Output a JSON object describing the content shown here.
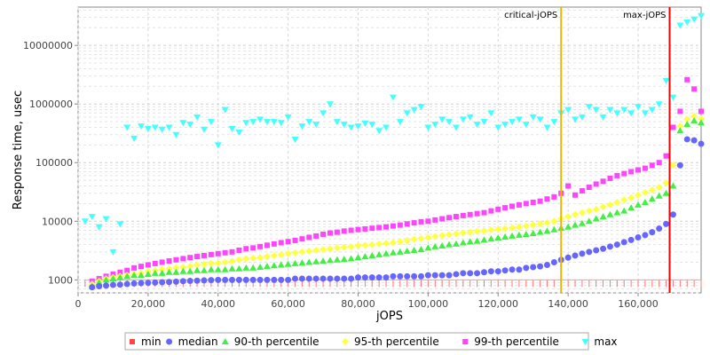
{
  "chart_data": {
    "type": "scatter",
    "title": "",
    "xlabel": "jOPS",
    "ylabel": "Response time, usec",
    "xlim": [
      0,
      178000
    ],
    "ylim": [
      600,
      45000000
    ],
    "yscale": "log",
    "x_ticks": [
      0,
      20000,
      40000,
      60000,
      80000,
      100000,
      120000,
      140000,
      160000
    ],
    "x_tick_labels": [
      "0",
      "20,000",
      "40,000",
      "60,000",
      "80,000",
      "100,000",
      "120,000",
      "140,000",
      "160,000"
    ],
    "y_ticks": [
      1000,
      10000,
      100000,
      1000000,
      10000000
    ],
    "y_tick_labels": [
      "1000",
      "10000",
      "100000",
      "1000000",
      "10000000"
    ],
    "grid": true,
    "legend_position": "bottom",
    "vertical_markers": [
      {
        "label": "critical-jOPS",
        "x": 138000,
        "color": "#e6b800"
      },
      {
        "label": "max-jOPS",
        "x": 169000,
        "color": "#ff0000"
      }
    ],
    "series": [
      {
        "name": "min",
        "marker": "square",
        "color": "#ff4444",
        "x": [],
        "values": []
      },
      {
        "name": "median",
        "marker": "circle",
        "color": "#6666ff",
        "x": [],
        "values": []
      },
      {
        "name": "90-th percentile",
        "marker": "triangle-up",
        "color": "#44ee44",
        "x": [],
        "values": []
      },
      {
        "name": "95-th percentile",
        "marker": "diamond",
        "color": "#ffff44",
        "x": [],
        "values": []
      },
      {
        "name": "99-th percentile",
        "marker": "square",
        "color": "#ff44ff",
        "x": [],
        "values": []
      },
      {
        "name": "max",
        "marker": "triangle-down",
        "color": "#44ffff",
        "x": [],
        "values": []
      }
    ],
    "sample_points": {
      "x": [
        2000,
        4000,
        6000,
        8000,
        10000,
        12000,
        14000,
        16000,
        18000,
        20000,
        22000,
        24000,
        26000,
        28000,
        30000,
        32000,
        34000,
        36000,
        38000,
        40000,
        42000,
        44000,
        46000,
        48000,
        50000,
        52000,
        54000,
        56000,
        58000,
        60000,
        62000,
        64000,
        66000,
        68000,
        70000,
        72000,
        74000,
        76000,
        78000,
        80000,
        82000,
        84000,
        86000,
        88000,
        90000,
        92000,
        94000,
        96000,
        98000,
        100000,
        102000,
        104000,
        106000,
        108000,
        110000,
        112000,
        114000,
        116000,
        118000,
        120000,
        122000,
        124000,
        126000,
        128000,
        130000,
        132000,
        134000,
        136000,
        138000,
        140000,
        142000,
        144000,
        146000,
        148000,
        150000,
        152000,
        154000,
        156000,
        158000,
        160000,
        162000,
        164000,
        166000,
        168000,
        170000,
        172000,
        174000,
        176000,
        178000
      ],
      "min": [
        900,
        900,
        900,
        900,
        900,
        900,
        900,
        900,
        900,
        900,
        900,
        900,
        900,
        900,
        900,
        900,
        900,
        900,
        900,
        900,
        900,
        900,
        900,
        900,
        900,
        900,
        900,
        900,
        900,
        900,
        900,
        900,
        900,
        900,
        900,
        900,
        900,
        900,
        900,
        900,
        900,
        900,
        900,
        900,
        900,
        900,
        900,
        900,
        900,
        900,
        900,
        900,
        900,
        900,
        900,
        900,
        900,
        900,
        900,
        900,
        900,
        900,
        900,
        900,
        900,
        900,
        900,
        900,
        900,
        900,
        900,
        900,
        900,
        900,
        900,
        900,
        900,
        900,
        900,
        900,
        900,
        900,
        900,
        900,
        900,
        900,
        900,
        900,
        900
      ],
      "median": [
        null,
        750,
        780,
        800,
        820,
        830,
        850,
        870,
        880,
        890,
        900,
        910,
        920,
        930,
        950,
        960,
        970,
        980,
        990,
        1000,
        1000,
        1000,
        1000,
        1000,
        1000,
        1000,
        1000,
        1000,
        1000,
        1000,
        1050,
        1050,
        1050,
        1050,
        1050,
        1050,
        1050,
        1050,
        1050,
        1100,
        1100,
        1100,
        1100,
        1100,
        1150,
        1150,
        1150,
        1150,
        1150,
        1200,
        1200,
        1200,
        1200,
        1250,
        1300,
        1300,
        1300,
        1350,
        1400,
        1400,
        1450,
        1500,
        1500,
        1600,
        1650,
        1700,
        1800,
        2000,
        2200,
        2400,
        2600,
        2800,
        3000,
        3200,
        3400,
        3700,
        4000,
        4400,
        4800,
        5300,
        5800,
        6500,
        7500,
        9000,
        13000,
        90000,
        250000,
        240000,
        210000
      ],
      "p90": [
        null,
        780,
        900,
        1000,
        1050,
        1100,
        1150,
        1200,
        1200,
        1250,
        1300,
        1300,
        1350,
        1350,
        1400,
        1400,
        1450,
        1450,
        1500,
        1500,
        1500,
        1550,
        1550,
        1600,
        1600,
        1650,
        1700,
        1750,
        1800,
        1850,
        1900,
        1950,
        2000,
        2050,
        2100,
        2150,
        2200,
        2250,
        2300,
        2400,
        2500,
        2600,
        2700,
        2800,
        2900,
        3000,
        3100,
        3200,
        3300,
        3500,
        3700,
        3800,
        4000,
        4100,
        4300,
        4500,
        4600,
        4800,
        5000,
        5200,
        5400,
        5600,
        5800,
        6000,
        6200,
        6500,
        6800,
        7200,
        7600,
        8000,
        8600,
        9200,
        10000,
        11000,
        12000,
        13000,
        14000,
        15000,
        17000,
        19000,
        21000,
        24000,
        27000,
        30000,
        40000,
        350000,
        450000,
        520000,
        480000
      ],
      "p95": [
        null,
        850,
        950,
        1050,
        1100,
        1150,
        1200,
        1250,
        1300,
        1400,
        1450,
        1500,
        1550,
        1600,
        1650,
        1700,
        1800,
        1850,
        1900,
        1950,
        2000,
        2100,
        2200,
        2300,
        2350,
        2400,
        2500,
        2600,
        2700,
        2800,
        2900,
        3000,
        3100,
        3200,
        3300,
        3400,
        3500,
        3600,
        3700,
        3800,
        3900,
        4000,
        4100,
        4200,
        4300,
        4500,
        4700,
        4900,
        5100,
        5300,
        5500,
        5700,
        5900,
        6100,
        6300,
        6500,
        6700,
        6900,
        7100,
        7300,
        7500,
        7700,
        8000,
        8300,
        8600,
        9000,
        9500,
        10000,
        11000,
        12000,
        13000,
        14000,
        15000,
        16000,
        17500,
        19000,
        21000,
        23000,
        25000,
        28000,
        31000,
        34000,
        38000,
        45000,
        90000,
        420000,
        550000,
        620000,
        560000
      ],
      "p99": [
        null,
        950,
        1050,
        1150,
        1250,
        1350,
        1450,
        1600,
        1700,
        1800,
        1900,
        2000,
        2100,
        2200,
        2300,
        2400,
        2500,
        2600,
        2700,
        2800,
        2900,
        3000,
        3200,
        3400,
        3500,
        3700,
        3900,
        4100,
        4300,
        4500,
        4700,
        5000,
        5300,
        5600,
        6000,
        6300,
        6500,
        6800,
        7000,
        7200,
        7400,
        7600,
        7800,
        8000,
        8300,
        8600,
        9000,
        9400,
        9800,
        10000,
        10500,
        11000,
        11500,
        12000,
        12500,
        13000,
        13500,
        14000,
        15000,
        16000,
        17000,
        18000,
        19000,
        20000,
        21000,
        22000,
        24000,
        26000,
        30000,
        40000,
        28000,
        33000,
        38000,
        43000,
        48000,
        54000,
        60000,
        65000,
        70000,
        75000,
        80000,
        90000,
        100000,
        130000,
        400000,
        750000,
        2600000,
        1800000,
        750000
      ],
      "max": [
        10000,
        12000,
        8000,
        11000,
        3000,
        9000,
        400000,
        260000,
        420000,
        380000,
        400000,
        370000,
        400000,
        300000,
        480000,
        450000,
        600000,
        370000,
        500000,
        200000,
        800000,
        380000,
        330000,
        480000,
        500000,
        550000,
        500000,
        500000,
        480000,
        600000,
        250000,
        420000,
        500000,
        450000,
        700000,
        1000000,
        500000,
        450000,
        400000,
        420000,
        470000,
        450000,
        350000,
        400000,
        1300000,
        500000,
        700000,
        800000,
        900000,
        400000,
        450000,
        550000,
        500000,
        400000,
        550000,
        600000,
        450000,
        500000,
        700000,
        400000,
        450000,
        500000,
        550000,
        450000,
        600000,
        550000,
        400000,
        500000,
        700000,
        800000,
        550000,
        600000,
        900000,
        800000,
        600000,
        800000,
        700000,
        800000,
        700000,
        900000,
        700000,
        800000,
        1000000,
        2500000,
        1300000,
        22000000,
        25000000,
        28000000,
        32000000
      ]
    }
  }
}
